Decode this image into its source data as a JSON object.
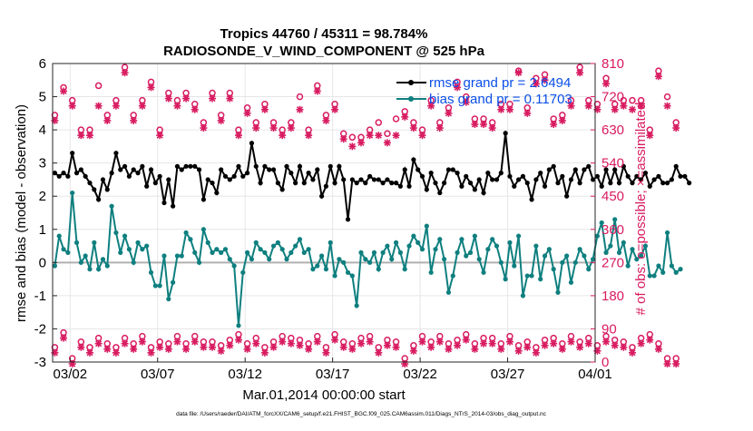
{
  "chart_data": {
    "type": "line",
    "title_line1": "Tropics 44760 / 45311 = 98.784%",
    "title_line2": "RADIOSONDE_V_WIND_COMPONENT @ 525 hPa",
    "xlabel": "Mar.01,2014 00:00:00 start",
    "ylabel_left": "rmse and bias (model - observation)",
    "ylabel_right": "# of obs: o=possible; ×=assimilated",
    "footer": "data file: /Users/raeder/DAI/ATM_forcXX/CAM6_setup/f.e21.FHIST_BGC.f09_025.CAM6assim.011/Diags_NTrS_2014-03/obs_diag_output.nc",
    "xlim": [
      0.5,
      31.5
    ],
    "ylim_left": [
      -3,
      6
    ],
    "ylim_right": [
      0,
      810
    ],
    "x_ticks": [
      {
        "x": 1.5,
        "label": "03/02"
      },
      {
        "x": 6.5,
        "label": "03/07"
      },
      {
        "x": 11.5,
        "label": "03/12"
      },
      {
        "x": 16.5,
        "label": "03/17"
      },
      {
        "x": 21.5,
        "label": "03/22"
      },
      {
        "x": 26.5,
        "label": "03/27"
      },
      {
        "x": 31.5,
        "label": "04/01"
      }
    ],
    "y_ticks_left": [
      "-3",
      "-2",
      "-1",
      "0",
      "1",
      "2",
      "3",
      "4",
      "5",
      "6"
    ],
    "y_ticks_right": [
      "0",
      "90",
      "180",
      "270",
      "360",
      "450",
      "540",
      "630",
      "720",
      "810"
    ],
    "legend": [
      {
        "name": "rmse grand pr = 2.6494",
        "color": "#000000"
      },
      {
        "name": "bias grand pr = 0.11703",
        "color": "#0f7f7f"
      }
    ],
    "colors": {
      "rmse": "#000000",
      "bias": "#0f7f7f",
      "counts": "#d81b60",
      "zero_line": "#b0b0b0",
      "axis": "#262626"
    },
    "series": [
      {
        "name": "rmse",
        "x_start": 0.625,
        "x_step": 0.25,
        "values": [
          2.7,
          2.6,
          2.7,
          2.6,
          3.3,
          2.7,
          2.8,
          2.6,
          2.4,
          2.2,
          1.9,
          2.5,
          2.2,
          2.7,
          3.3,
          2.8,
          2.9,
          2.6,
          2.8,
          2.7,
          2.9,
          2.3,
          2.8,
          2.4,
          2.6,
          1.8,
          2.5,
          1.7,
          2.9,
          2.8,
          2.9,
          2.9,
          2.9,
          2.8,
          1.9,
          2.5,
          2.4,
          2.1,
          2.8,
          2.6,
          2.5,
          2.6,
          2.9,
          2.6,
          2.7,
          3.6,
          2.9,
          2.4,
          2.9,
          2.8,
          2.8,
          2.4,
          2.2,
          2.9,
          2.7,
          2.4,
          2.9,
          2.4,
          2.7,
          2.5,
          2.8,
          2.0,
          2.3,
          2.9,
          2.4,
          2.9,
          2.5,
          1.3,
          2.5,
          2.4,
          2.5,
          2.4,
          2.6,
          2.5,
          2.5,
          2.4,
          2.5,
          2.4,
          2.4,
          2.3,
          2.8,
          2.3,
          3.1,
          2.8,
          2.6,
          2.2,
          2.7,
          2.4,
          2.1,
          2.4,
          2.8,
          2.8,
          2.7,
          2.3,
          2.6,
          2.4,
          2.2,
          2.5,
          2.1,
          2.7,
          2.5,
          2.5,
          2.7,
          3.9,
          2.6,
          2.3,
          2.5,
          2.6,
          2.4,
          1.9,
          2.5,
          2.7,
          2.3,
          2.8,
          2.9,
          2.4,
          2.6,
          2.0,
          2.5,
          2.8,
          2.4,
          2.8,
          2.9,
          2.5,
          2.6,
          2.3,
          2.8,
          2.4,
          2.8,
          2.4,
          2.9,
          2.6,
          2.4,
          2.6,
          2.5,
          2.7,
          2.3,
          2.5,
          2.6,
          2.4,
          2.4,
          2.5,
          2.9,
          2.6,
          2.6,
          2.4
        ]
      },
      {
        "name": "bias",
        "x_start": 0.625,
        "x_step": 0.25,
        "values": [
          -0.1,
          0.8,
          0.4,
          0.3,
          2.1,
          0.6,
          0.0,
          0.2,
          -0.2,
          0.6,
          -0.2,
          0.1,
          -0.1,
          1.7,
          0.9,
          0.3,
          0.8,
          0.4,
          0.0,
          0.6,
          0.4,
          0.5,
          -0.3,
          -0.7,
          -0.7,
          0.2,
          -1.1,
          -0.6,
          0.2,
          0.2,
          0.9,
          0.7,
          0.3,
          0.0,
          1.0,
          0.6,
          0.3,
          0.4,
          0.3,
          0.4,
          0.1,
          -0.1,
          -1.9,
          -0.3,
          0.3,
          0.1,
          0.6,
          0.4,
          0.3,
          0.1,
          0.5,
          0.6,
          0.4,
          0.1,
          0.3,
          0.5,
          0.7,
          0.3,
          0.4,
          -0.2,
          -0.1,
          0.2,
          -0.2,
          0.6,
          -0.4,
          0.1,
          0.0,
          -0.3,
          -0.4,
          -1.3,
          0.3,
          0.1,
          0.0,
          0.3,
          -0.2,
          0.3,
          0.5,
          0.1,
          0.6,
          0.3,
          -0.2,
          0.5,
          0.8,
          0.6,
          0.4,
          1.1,
          -0.3,
          0.4,
          0.7,
          0.1,
          -0.9,
          -0.4,
          0.3,
          0.7,
          0.2,
          0.3,
          0.8,
          0.1,
          -0.3,
          0.4,
          0.7,
          0.5,
          0.0,
          -0.5,
          0.6,
          -0.1,
          0.8,
          -1.0,
          -0.4,
          -0.4,
          0.5,
          -0.5,
          0.2,
          0.4,
          -0.2,
          -0.9,
          0.0,
          0.2,
          -0.6,
          0.0,
          0.4,
          0.2,
          -0.2,
          0.1,
          0.8,
          1.2,
          0.3,
          0.5,
          1.3,
          0.3,
          0.6,
          -0.1,
          0.4,
          0.1,
          0.2,
          0.5,
          -0.4,
          -0.4,
          -0.1,
          -0.3,
          0.9,
          -0.1,
          -0.3,
          -0.2
        ]
      },
      {
        "name": "possible",
        "x_start": 0.625,
        "x_step": 0.5,
        "values": [
          660,
          735,
          700,
          620,
          620,
          740,
          660,
          700,
          790,
          660,
          700,
          750,
          620,
          720,
          700,
          720,
          690,
          640,
          720,
          660,
          720,
          620,
          680,
          640,
          690,
          640,
          620,
          640,
          710,
          620,
          740,
          660,
          690,
          610,
          600,
          600,
          620,
          640,
          610,
          650,
          670,
          640,
          620,
          700,
          640,
          680,
          750,
          710,
          650,
          650,
          640,
          690,
          690,
          780,
          680,
          760,
          770,
          650,
          660,
          700,
          790,
          700,
          690,
          760,
          690,
          700,
          700,
          700,
          620,
          780,
          710,
          640
        ]
      },
      {
        "name": "assimilated",
        "x_start": 0.625,
        "x_step": 0.5,
        "values": [
          660,
          740,
          700,
          620,
          620,
          700,
          660,
          700,
          790,
          660,
          700,
          750,
          620,
          720,
          700,
          720,
          690,
          640,
          720,
          660,
          720,
          620,
          680,
          640,
          690,
          640,
          620,
          640,
          690,
          620,
          740,
          660,
          690,
          610,
          590,
          600,
          620,
          620,
          600,
          620,
          670,
          640,
          620,
          700,
          640,
          680,
          750,
          710,
          650,
          650,
          640,
          690,
          690,
          790,
          680,
          760,
          770,
          650,
          660,
          700,
          790,
          700,
          690,
          760,
          690,
          700,
          690,
          700,
          620,
          780,
          700,
          640
        ]
      },
      {
        "name": "possible_low",
        "x_start": 0.625,
        "x_step": 0.5,
        "values": [
          30,
          70,
          0,
          45,
          30,
          55,
          40,
          30,
          55,
          40,
          60,
          30,
          45,
          40,
          60,
          40,
          60,
          45,
          45,
          35,
          50,
          65,
          40,
          55,
          30,
          45,
          60,
          55,
          50,
          40,
          60,
          30,
          65,
          45,
          40,
          55,
          60,
          30,
          50,
          45,
          0,
          35,
          60,
          45,
          60,
          40,
          50,
          65,
          40,
          55,
          55,
          40,
          60,
          35,
          45,
          30,
          50,
          55,
          40,
          60,
          45,
          55,
          35,
          60,
          50,
          45,
          30,
          55,
          65,
          40,
          0,
          0
        ]
      },
      {
        "name": "assimilated_low",
        "x_start": 0.625,
        "x_step": 0.5,
        "values": [
          30,
          70,
          0,
          45,
          30,
          55,
          40,
          30,
          55,
          40,
          60,
          30,
          45,
          40,
          60,
          40,
          60,
          45,
          45,
          35,
          50,
          65,
          40,
          55,
          30,
          45,
          60,
          55,
          50,
          40,
          60,
          30,
          65,
          45,
          40,
          55,
          60,
          30,
          50,
          45,
          0,
          35,
          60,
          45,
          60,
          40,
          50,
          65,
          40,
          55,
          55,
          40,
          60,
          35,
          45,
          30,
          50,
          55,
          40,
          60,
          45,
          55,
          35,
          60,
          50,
          45,
          30,
          55,
          65,
          40,
          0,
          0
        ]
      }
    ]
  }
}
